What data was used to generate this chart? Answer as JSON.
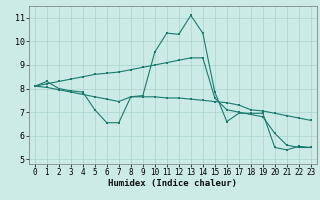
{
  "title": "",
  "xlabel": "Humidex (Indice chaleur)",
  "bg_color": "#cceae6",
  "grid_color": "#aad4d0",
  "line_color": "#1a7a6e",
  "x_ticks": [
    0,
    1,
    2,
    3,
    4,
    5,
    6,
    7,
    8,
    9,
    10,
    11,
    12,
    13,
    14,
    15,
    16,
    17,
    18,
    19,
    20,
    21,
    22,
    23
  ],
  "ylim": [
    4.8,
    11.5
  ],
  "xlim": [
    -0.5,
    23.5
  ],
  "yticks": [
    5,
    6,
    7,
    8,
    9,
    10,
    11
  ],
  "line1_y": [
    8.1,
    8.3,
    8.0,
    7.9,
    7.85,
    7.1,
    6.55,
    6.55,
    7.65,
    7.7,
    9.55,
    10.35,
    10.3,
    11.1,
    10.35,
    7.85,
    6.6,
    6.95,
    6.95,
    6.95,
    5.5,
    5.4,
    5.55,
    5.5
  ],
  "line2_y": [
    8.1,
    8.2,
    8.3,
    8.4,
    8.5,
    8.6,
    8.65,
    8.7,
    8.8,
    8.9,
    9.0,
    9.1,
    9.2,
    9.3,
    9.3,
    7.6,
    7.1,
    7.0,
    6.9,
    6.8,
    6.1,
    5.6,
    5.5,
    5.5
  ],
  "line3_y": [
    8.1,
    8.05,
    7.95,
    7.85,
    7.75,
    7.65,
    7.55,
    7.45,
    7.65,
    7.65,
    7.65,
    7.6,
    7.6,
    7.55,
    7.5,
    7.45,
    7.4,
    7.3,
    7.1,
    7.05,
    6.95,
    6.85,
    6.75,
    6.65
  ],
  "tick_fontsize": 5.5,
  "xlabel_fontsize": 6.5,
  "marker_size": 1.8,
  "line_width": 0.8
}
